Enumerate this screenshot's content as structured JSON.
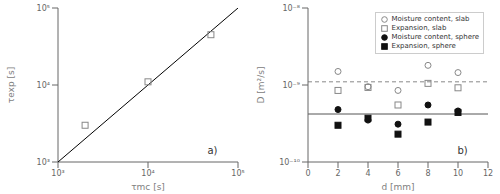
{
  "chart_data": [
    {
      "type": "scatter",
      "xlabel": "τmc [s]",
      "ylabel": "τexp [s]",
      "log": true,
      "xlim": [
        1000,
        100000
      ],
      "ylim": [
        1000,
        100000
      ],
      "xticks": [
        {
          "value": 1000,
          "label": "10³"
        },
        {
          "value": 10000,
          "label": "10⁴"
        },
        {
          "value": 100000,
          "label": "10⁵"
        }
      ],
      "yticks": [
        {
          "value": 1000,
          "label": "10³"
        },
        {
          "value": 10000,
          "label": "10⁴"
        },
        {
          "value": 100000,
          "label": "10⁵"
        }
      ],
      "series": [
        {
          "type": "line",
          "color": "#000000",
          "line_style": "solid",
          "x": [
            1000,
            100000
          ],
          "values": [
            1000,
            100000
          ]
        },
        {
          "type": "scatter",
          "color": "#888888",
          "marker": "open_square",
          "x": [
            2000,
            10000,
            50000
          ],
          "values": [
            3000,
            11000,
            45000
          ]
        }
      ],
      "annotations": [
        "a)"
      ]
    },
    {
      "type": "scatter",
      "xlabel": "d [mm]",
      "ylabel": "D [m²/s]",
      "log": "y",
      "xlim": [
        0,
        12
      ],
      "ylim": [
        1e-10,
        1e-08
      ],
      "xticks": [
        0,
        2,
        4,
        6,
        8,
        10,
        12
      ],
      "yticks": [
        {
          "value": 1e-10,
          "label": "10⁻¹⁰"
        },
        {
          "value": 1e-09,
          "label": "10⁻⁹"
        },
        {
          "value": 1e-08,
          "label": "10⁻⁸"
        }
      ],
      "legend": "upper right",
      "series": [
        {
          "type": "scatter",
          "name": "Moisture content, slab",
          "color": "#888888",
          "marker": "open_circle",
          "x": [
            2,
            4,
            6,
            8,
            10
          ],
          "values": [
            1.5e-09,
            9.5e-10,
            8.5e-10,
            1.8e-09,
            1.45e-09
          ]
        },
        {
          "type": "scatter",
          "name": "Expansion, slab",
          "color": "#888888",
          "marker": "open_square",
          "x": [
            2,
            4,
            6,
            8,
            10
          ],
          "values": [
            8.5e-10,
            9.3e-10,
            5.5e-10,
            1.05e-09,
            9.2e-10
          ]
        },
        {
          "type": "scatter",
          "name": "Moisture content, sphere",
          "color": "#111111",
          "marker": "circle",
          "x": [
            2,
            4,
            6,
            8,
            10
          ],
          "values": [
            4.8e-10,
            3.5e-10,
            3.1e-10,
            5.5e-10,
            4.6e-10
          ]
        },
        {
          "type": "scatter",
          "name": "Expansion, sphere",
          "color": "#111111",
          "marker": "square",
          "x": [
            2,
            4,
            6,
            8,
            10
          ],
          "values": [
            3e-10,
            3.7e-10,
            2.3e-10,
            3.3e-10,
            4.4e-10
          ]
        },
        {
          "type": "hline",
          "color": "#888888",
          "line_style": "dashed",
          "values": [
            1.1e-09
          ]
        },
        {
          "type": "hline",
          "color": "#555555",
          "line_style": "solid",
          "values": [
            4.2e-10
          ]
        }
      ],
      "annotations": [
        "b)"
      ]
    }
  ]
}
